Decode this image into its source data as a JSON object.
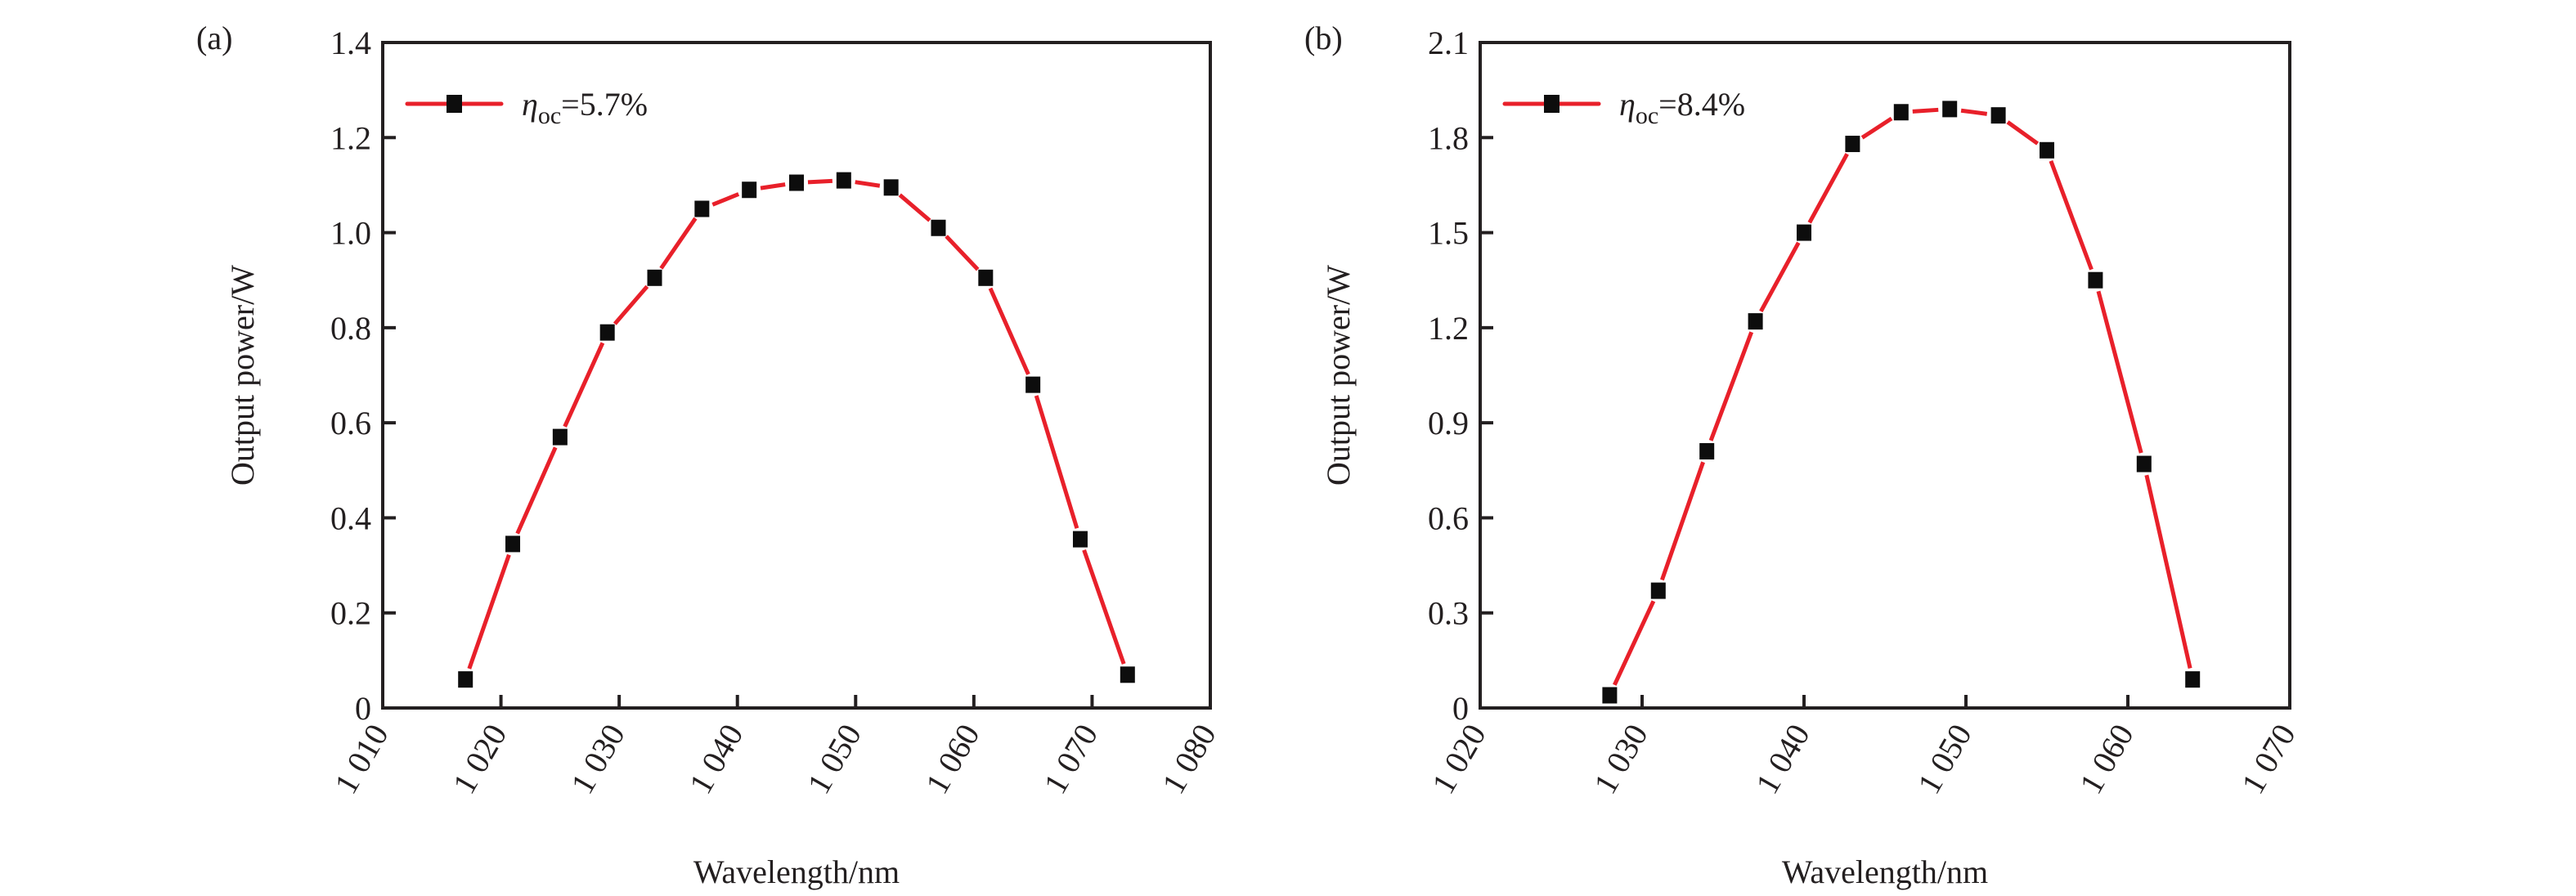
{
  "chart_data": [
    {
      "type": "line",
      "panel_label": "(a)",
      "xlabel": "Wavelength/nm",
      "ylabel": "Output power/W",
      "xlim": [
        1010,
        1080
      ],
      "ylim": [
        0,
        1.4
      ],
      "xticks": [
        1010,
        1020,
        1030,
        1040,
        1050,
        1060,
        1070,
        1080
      ],
      "xtick_labels": [
        "1 010",
        "1 020",
        "1 030",
        "1 040",
        "1 050",
        "1 060",
        "1 070",
        "1 080"
      ],
      "yticks": [
        0,
        0.2,
        0.4,
        0.6,
        0.8,
        1.0,
        1.2,
        1.4
      ],
      "ytick_labels": [
        "0",
        "0.2",
        "0.4",
        "0.6",
        "0.8",
        "1.0",
        "1.2",
        "1.4"
      ],
      "grid": false,
      "legend_position": "top-left",
      "series": [
        {
          "name_symbol": "η",
          "name_subscript": "oc",
          "name_value": "=5.7%",
          "color": "#e8202a",
          "marker": "square",
          "x": [
            1017,
            1021,
            1025,
            1029,
            1033,
            1037,
            1041,
            1045,
            1049,
            1053,
            1057,
            1061,
            1065,
            1069,
            1073
          ],
          "y": [
            0.06,
            0.345,
            0.57,
            0.79,
            0.905,
            1.05,
            1.09,
            1.105,
            1.11,
            1.095,
            1.01,
            0.905,
            0.68,
            0.355,
            0.07
          ]
        }
      ]
    },
    {
      "type": "line",
      "panel_label": "(b)",
      "xlabel": "Wavelength/nm",
      "ylabel": "Output power/W",
      "xlim": [
        1020,
        1070
      ],
      "ylim": [
        0,
        2.1
      ],
      "xticks": [
        1020,
        1030,
        1040,
        1050,
        1060,
        1070
      ],
      "xtick_labels": [
        "1 020",
        "1 030",
        "1 040",
        "1 050",
        "1 060",
        "1 070"
      ],
      "yticks": [
        0,
        0.3,
        0.6,
        0.9,
        1.2,
        1.5,
        1.8,
        2.1
      ],
      "ytick_labels": [
        "0",
        "0.3",
        "0.6",
        "0.9",
        "1.2",
        "1.5",
        "1.8",
        "2.1"
      ],
      "grid": false,
      "legend_position": "top-left",
      "series": [
        {
          "name_symbol": "η",
          "name_subscript": "oc",
          "name_value": "=8.4%",
          "color": "#e8202a",
          "marker": "square",
          "x": [
            1028,
            1031,
            1034,
            1037,
            1040,
            1043,
            1046,
            1049,
            1052,
            1055,
            1058,
            1061,
            1064
          ],
          "y": [
            0.04,
            0.37,
            0.81,
            1.22,
            1.5,
            1.78,
            1.88,
            1.89,
            1.87,
            1.76,
            1.35,
            0.77,
            0.09
          ]
        }
      ]
    }
  ]
}
